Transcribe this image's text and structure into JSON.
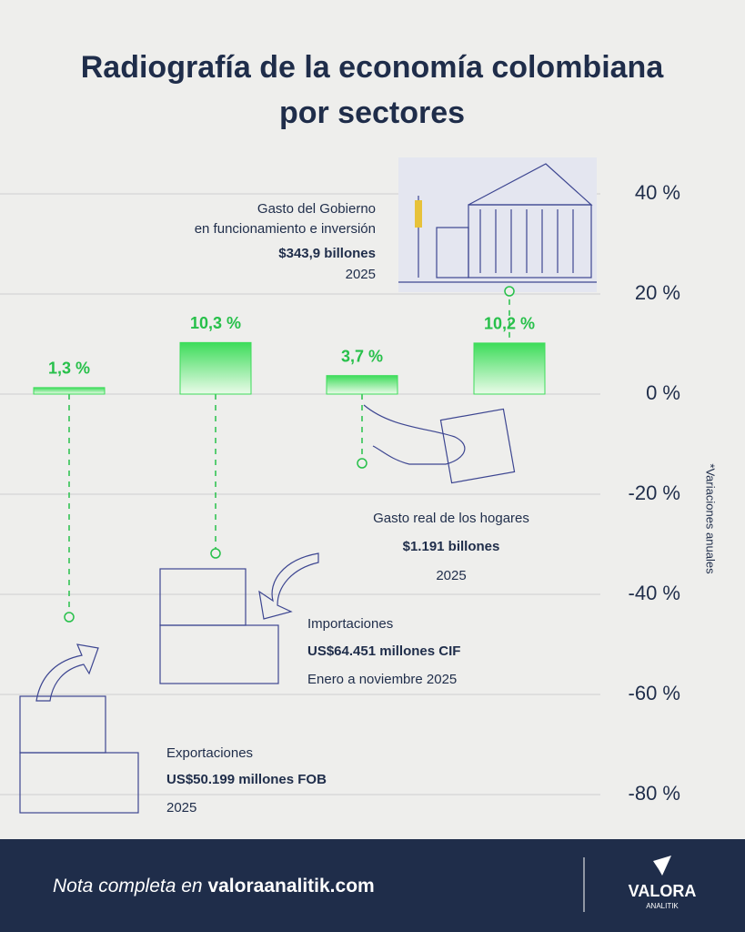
{
  "chart_data": {
    "type": "bar",
    "title": [
      "Radiografía de la economía colombiana",
      "por sectores"
    ],
    "values": [
      1.3,
      10.3,
      3.7,
      10.2
    ],
    "value_labels": [
      "1,3 %",
      "10,3 %",
      "3,7 %",
      "10,2 %"
    ],
    "color": "#3ddc5a",
    "annotations": [
      {
        "label": [
          "Exportaciones"
        ],
        "amount": "US$50.199 millones FOB",
        "period": "2025"
      },
      {
        "label": [
          "Importaciones"
        ],
        "amount": "US$64.451 millones CIF",
        "period": "Enero a noviembre 2025"
      },
      {
        "label": [
          "Gasto real de los hogares"
        ],
        "amount": "$1.191 billones",
        "period": "2025"
      },
      {
        "label": [
          "Gasto del Gobierno",
          "en funcionamiento e inversión"
        ],
        "amount": "$343,9 billones",
        "period": "2025"
      }
    ],
    "ylim": [
      -80,
      40
    ],
    "yticks": [
      {
        "value": 40,
        "label": "40 %"
      },
      {
        "value": 20,
        "label": "20 %"
      },
      {
        "value": 0,
        "label": "0 %"
      },
      {
        "value": -20,
        "label": "-20 %"
      },
      {
        "value": -40,
        "label": "-40 %"
      },
      {
        "value": -60,
        "label": "-60 %"
      },
      {
        "value": -80,
        "label": "-80 %"
      }
    ],
    "y_axis_label": "*Variaciones anuales",
    "grid": true
  },
  "footer": {
    "note": "Nota completa en",
    "link": "valoraanalitik.com",
    "brand": "VALORA",
    "brand_sub": "ANALITIK"
  }
}
